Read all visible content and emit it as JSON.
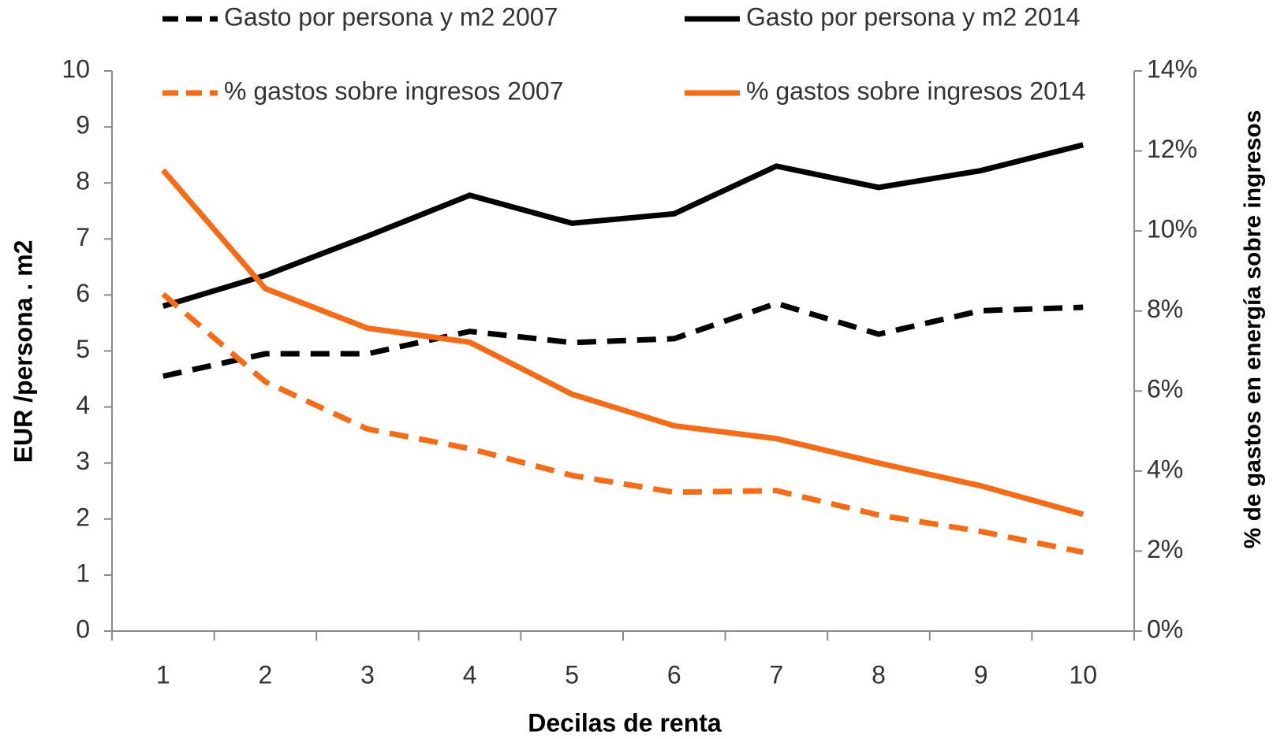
{
  "chart_data": {
    "type": "line",
    "x_label": "Decilas de renta",
    "y_label": "EUR /persona . m2",
    "y2_label": "% de gastos en energía sobre ingresos",
    "categories": [
      "1",
      "2",
      "3",
      "4",
      "5",
      "6",
      "7",
      "8",
      "9",
      "10"
    ],
    "ylim": [
      0,
      10
    ],
    "yticks": [
      0,
      1,
      2,
      3,
      4,
      5,
      6,
      7,
      8,
      9,
      10
    ],
    "y2lim": [
      0,
      14
    ],
    "y2ticks": [
      {
        "value": 0,
        "label": "0%"
      },
      {
        "value": 2,
        "label": "2%"
      },
      {
        "value": 4,
        "label": "4%"
      },
      {
        "value": 6,
        "label": "6%"
      },
      {
        "value": 8,
        "label": "8%"
      },
      {
        "value": 10,
        "label": "10%"
      },
      {
        "value": 12,
        "label": "12%"
      },
      {
        "value": 14,
        "label": "14%"
      }
    ],
    "series": [
      {
        "name": "Gasto por persona y m2 2007",
        "color": "#000000",
        "linestyle": "dashed",
        "values": [
          4.55,
          4.95,
          4.95,
          5.35,
          5.15,
          5.22,
          5.85,
          5.3,
          5.72,
          5.78
        ]
      },
      {
        "name": "Gasto por persona y m2 2014",
        "color": "#000000",
        "linestyle": "solid",
        "values": [
          5.8,
          6.35,
          7.05,
          7.78,
          7.28,
          7.45,
          8.3,
          7.92,
          8.22,
          8.68
        ]
      },
      {
        "name": "% gastos sobre ingresos 2007",
        "color": "#fa6a12",
        "linestyle": "dashed",
        "axis": "y2",
        "values": [
          8.42,
          6.23,
          5.05,
          4.56,
          3.89,
          3.47,
          3.51,
          2.9,
          2.49,
          1.97
        ]
      },
      {
        "name": "% gastos sobre ingresos 2014",
        "color": "#fa6a12",
        "linestyle": "solid",
        "axis": "y2",
        "values": [
          11.52,
          8.56,
          7.57,
          7.22,
          5.92,
          5.13,
          4.81,
          4.2,
          3.63,
          2.92
        ]
      }
    ]
  }
}
